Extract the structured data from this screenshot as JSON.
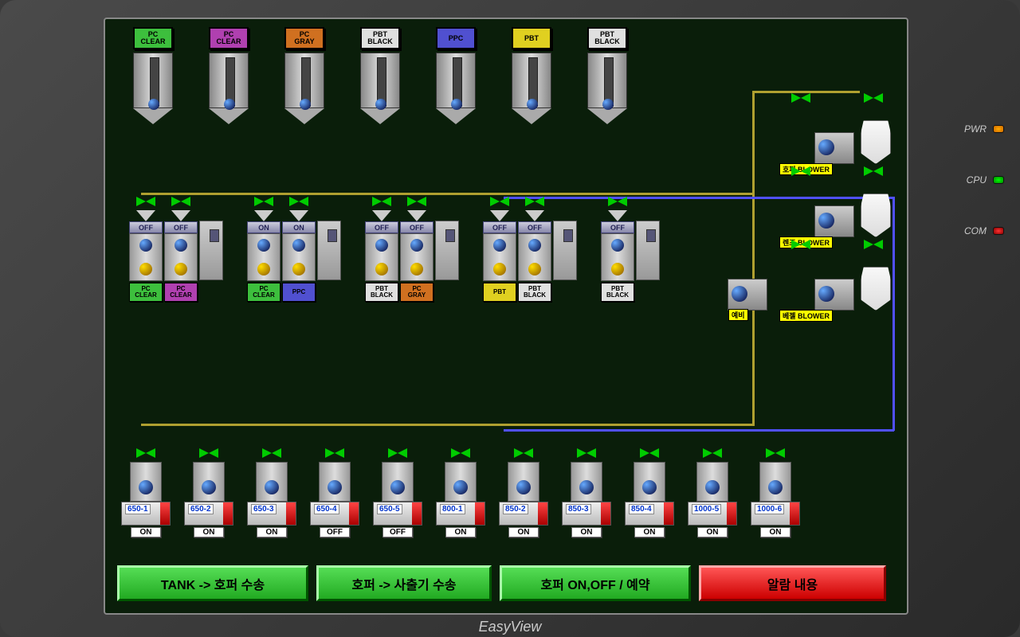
{
  "hmi": {
    "brand": "EasyView",
    "leds": [
      {
        "label": "PWR",
        "color": "orange"
      },
      {
        "label": "CPU",
        "color": "green"
      },
      {
        "label": "COM",
        "color": "red"
      }
    ]
  },
  "silos": [
    {
      "label_l1": "PC",
      "label_l2": "CLEAR",
      "color": "#3dbf3d"
    },
    {
      "label_l1": "PC",
      "label_l2": "CLEAR",
      "color": "#b040b0"
    },
    {
      "label_l1": "PC",
      "label_l2": "GRAY",
      "color": "#d07020"
    },
    {
      "label_l1": "PBT",
      "label_l2": "BLACK",
      "color": "#e0e0e0"
    },
    {
      "label_l1": "PPC",
      "label_l2": "",
      "color": "#5050d0"
    },
    {
      "label_l1": "PBT",
      "label_l2": "",
      "color": "#e0d020"
    },
    {
      "label_l1": "PBT",
      "label_l2": "BLACK",
      "color": "#e0e0e0"
    }
  ],
  "dryer_groups": [
    {
      "units": [
        {
          "state": "OFF",
          "label_l1": "PC",
          "label_l2": "CLEAR",
          "color": "#3dbf3d"
        },
        {
          "state": "OFF",
          "label_l1": "PC",
          "label_l2": "CLEAR",
          "color": "#b040b0"
        }
      ]
    },
    {
      "units": [
        {
          "state": "ON",
          "label_l1": "PC",
          "label_l2": "CLEAR",
          "color": "#3dbf3d"
        },
        {
          "state": "ON",
          "label_l1": "PPC",
          "label_l2": "",
          "color": "#5050d0"
        }
      ]
    },
    {
      "units": [
        {
          "state": "OFF",
          "label_l1": "PBT",
          "label_l2": "BLACK",
          "color": "#e0e0e0"
        },
        {
          "state": "OFF",
          "label_l1": "PC",
          "label_l2": "GRAY",
          "color": "#d07020"
        }
      ]
    },
    {
      "units": [
        {
          "state": "OFF",
          "label_l1": "PBT",
          "label_l2": "",
          "color": "#e0d020"
        },
        {
          "state": "OFF",
          "label_l1": "PBT",
          "label_l2": "BLACK",
          "color": "#e0e0e0"
        }
      ]
    },
    {
      "units": [
        {
          "state": "OFF",
          "label_l1": "PBT",
          "label_l2": "BLACK",
          "color": "#e0e0e0"
        }
      ]
    }
  ],
  "machines": [
    {
      "id": "650-1",
      "state": "ON"
    },
    {
      "id": "650-2",
      "state": "ON"
    },
    {
      "id": "650-3",
      "state": "ON"
    },
    {
      "id": "650-4",
      "state": "OFF"
    },
    {
      "id": "650-5",
      "state": "OFF"
    },
    {
      "id": "800-1",
      "state": "ON"
    },
    {
      "id": "850-2",
      "state": "ON"
    },
    {
      "id": "850-3",
      "state": "ON"
    },
    {
      "id": "850-4",
      "state": "ON"
    },
    {
      "id": "1000-5",
      "state": "ON"
    },
    {
      "id": "1000-6",
      "state": "ON"
    }
  ],
  "blowers": [
    {
      "label": "호퍼 BLOWER",
      "extra": null
    },
    {
      "label": "렌즈 BLOWER",
      "extra": null
    },
    {
      "label": "베젤 BLOWER",
      "extra": "예비"
    }
  ],
  "buttons": {
    "tank_hopper": "TANK -> 호퍼 수송",
    "hopper_injection": "호퍼 -> 사출기 수송",
    "hopper_onoff": "호퍼 ON,OFF / 예약",
    "alarm": "알람 내용"
  },
  "colors": {
    "screen_bg": "#0a1e0a",
    "pipe_yellow": "#b0a030",
    "pipe_blue": "#5050ff",
    "valve_green": "#00cc00",
    "blower_label_bg": "#ffff00"
  }
}
